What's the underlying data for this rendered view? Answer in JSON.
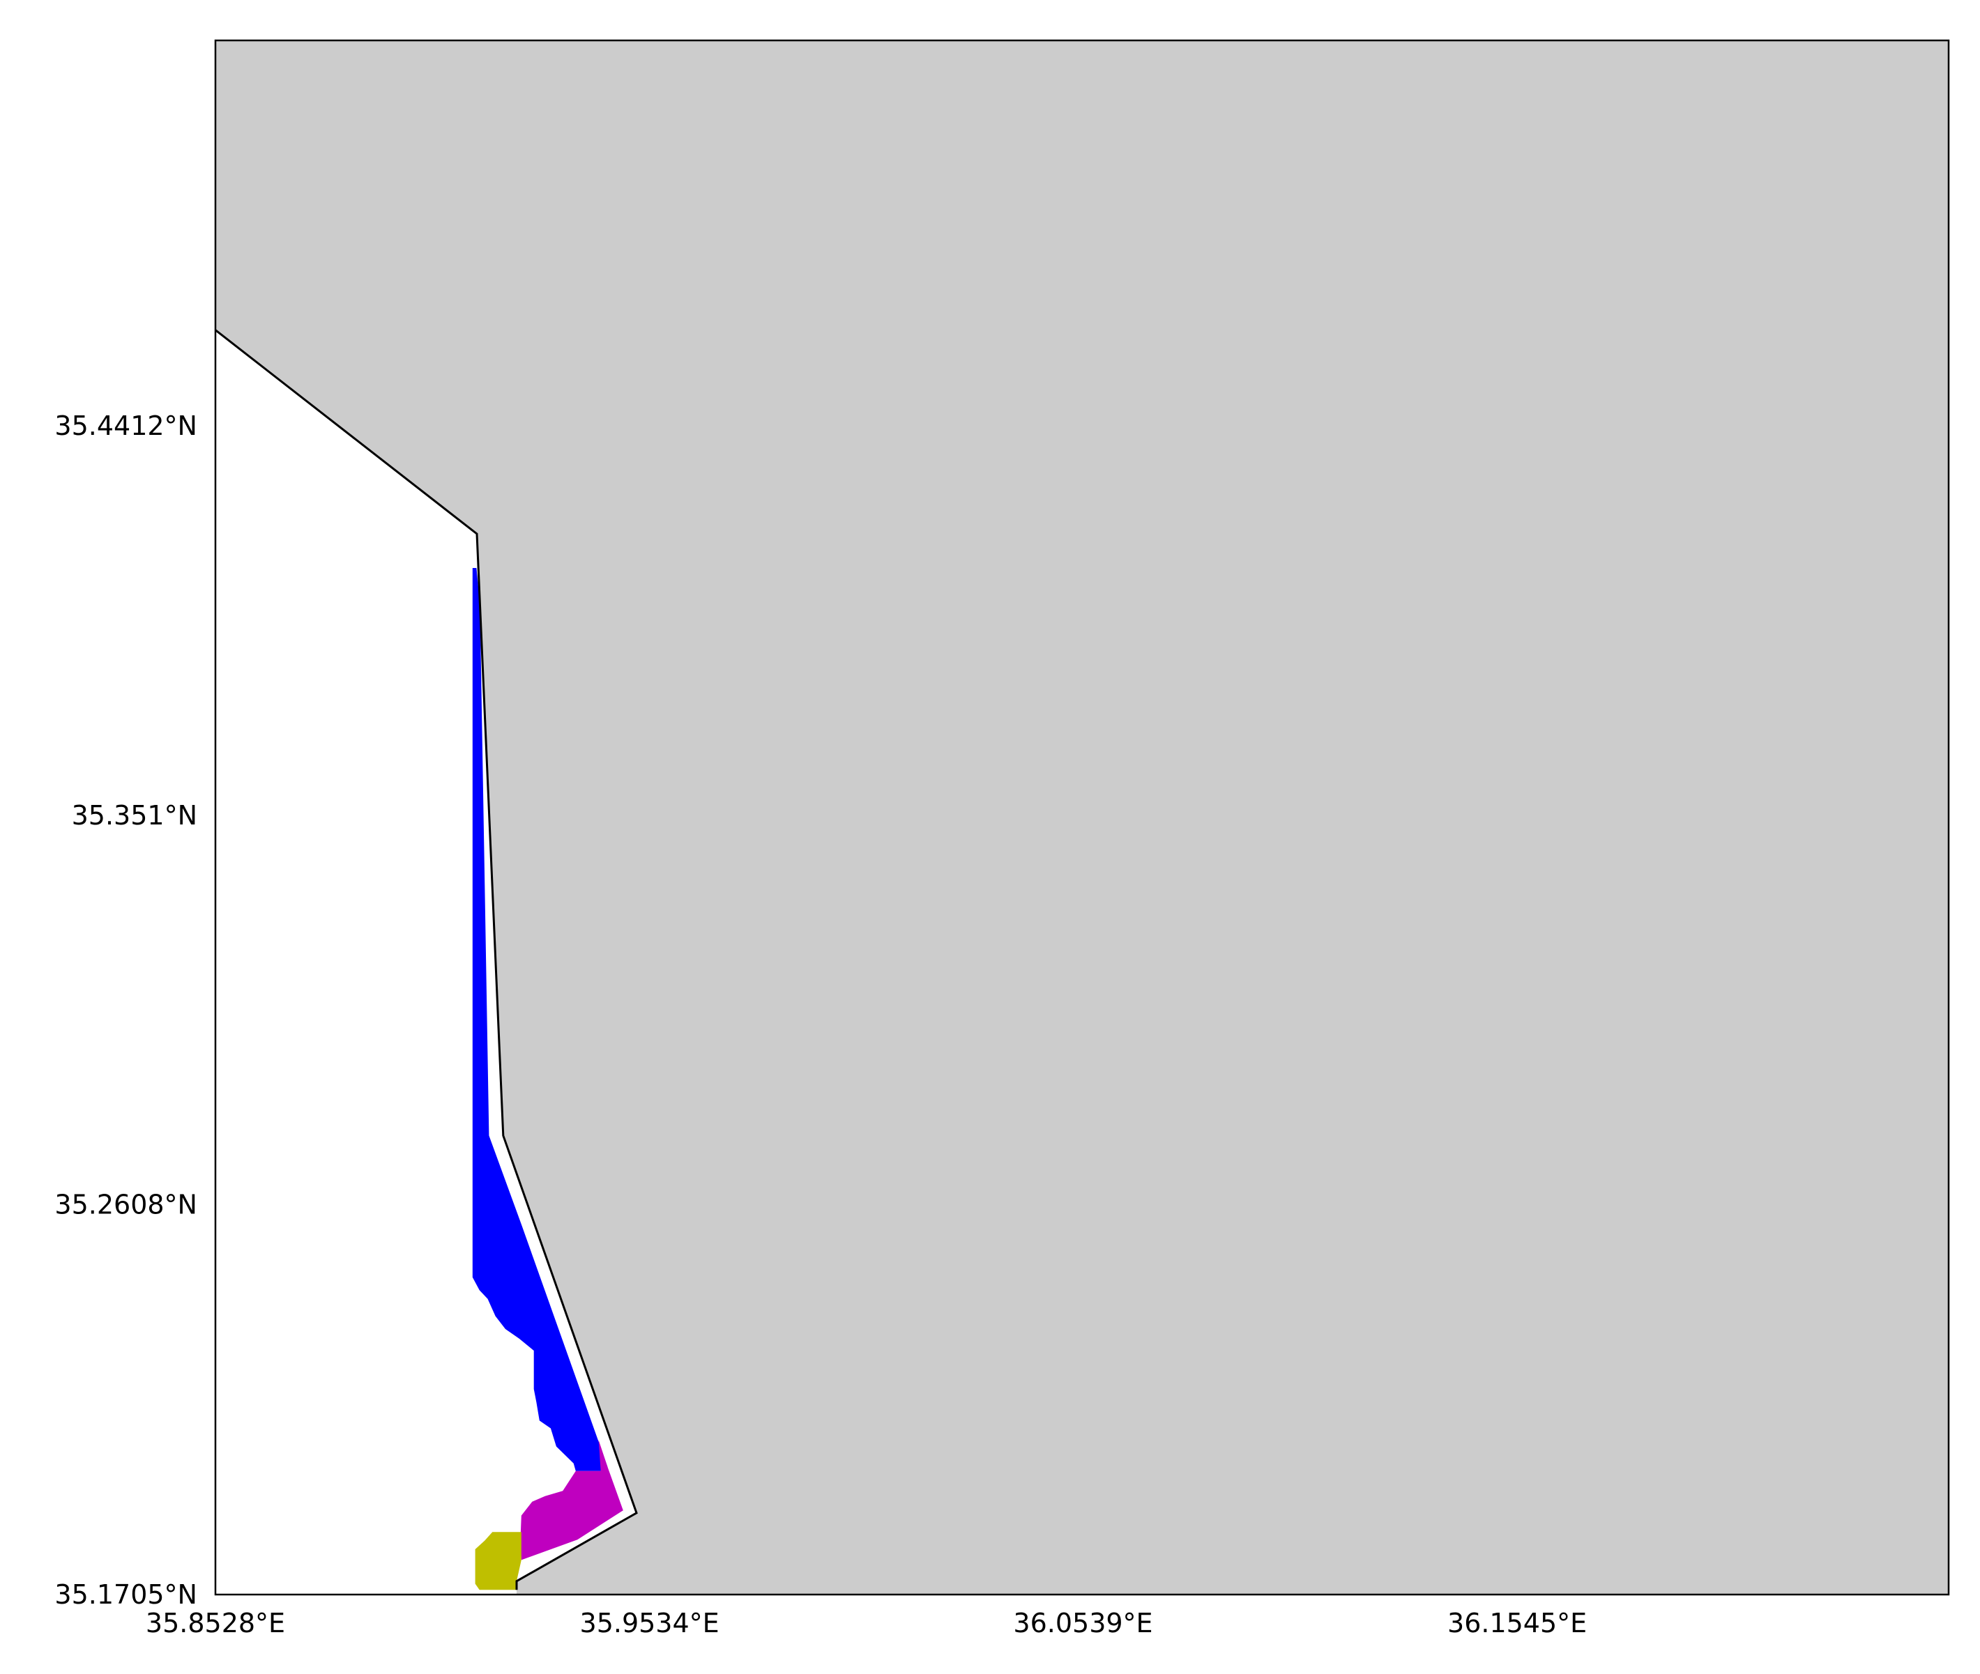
{
  "map": {
    "projection": "PlateCarree",
    "extent": {
      "lon_min": 35.8528,
      "lon_max": 36.2545,
      "lat_min": 35.1705,
      "lat_max": 35.5305
    },
    "colors": {
      "land": "#cccccc",
      "sea": "#ffffff",
      "coastline": "#000000",
      "class_blue": "#0000ff",
      "class_magenta": "#bf00bf",
      "class_olive": "#bfbf00"
    },
    "x_ticks": [
      {
        "value": 35.8528,
        "label": "35.8528°E"
      },
      {
        "value": 35.9534,
        "label": "35.9534°E"
      },
      {
        "value": 36.0539,
        "label": "36.0539°E"
      },
      {
        "value": 36.1545,
        "label": "36.1545°E"
      }
    ],
    "y_ticks": [
      {
        "value": 35.1705,
        "label": "35.1705°N"
      },
      {
        "value": 35.2608,
        "label": "35.2608°N"
      },
      {
        "value": 35.351,
        "label": "35.351°N"
      },
      {
        "value": 35.4412,
        "label": "35.4412°N"
      }
    ],
    "coastline": [
      [
        35.8528,
        35.4634
      ],
      [
        35.9134,
        35.4162
      ],
      [
        35.9195,
        35.2768
      ],
      [
        35.9504,
        35.1894
      ],
      [
        35.9226,
        35.1736
      ],
      [
        35.9226,
        35.1716
      ]
    ],
    "regions": [
      {
        "name": "blue-zone",
        "color_key": "class_blue",
        "polygon": [
          [
            35.9124,
            35.4083
          ],
          [
            35.9133,
            35.4083
          ],
          [
            35.9141,
            35.4
          ],
          [
            35.9162,
            35.2768
          ],
          [
            35.9238,
            35.256
          ],
          [
            35.9437,
            35.2
          ],
          [
            35.9421,
            35.1991
          ],
          [
            35.9363,
            35.1991
          ],
          [
            35.9358,
            35.2009
          ],
          [
            35.9318,
            35.2048
          ],
          [
            35.9305,
            35.209
          ],
          [
            35.9279,
            35.2108
          ],
          [
            35.9272,
            35.215
          ],
          [
            35.9266,
            35.2181
          ],
          [
            35.9266,
            35.227
          ],
          [
            35.9232,
            35.2298
          ],
          [
            35.92,
            35.232
          ],
          [
            35.9177,
            35.235
          ],
          [
            35.9159,
            35.239
          ],
          [
            35.914,
            35.241
          ],
          [
            35.9124,
            35.244
          ]
        ]
      },
      {
        "name": "magenta-zone",
        "color_key": "class_magenta",
        "polygon": [
          [
            35.9416,
            35.2063
          ],
          [
            35.9437,
            35.2
          ],
          [
            35.9473,
            35.19
          ],
          [
            35.9367,
            35.1832
          ],
          [
            35.9237,
            35.1785
          ],
          [
            35.9235,
            35.1833
          ],
          [
            35.9237,
            35.1888
          ],
          [
            35.9262,
            35.192
          ],
          [
            35.9292,
            35.1933
          ],
          [
            35.9333,
            35.1945
          ],
          [
            35.9363,
            35.1991
          ],
          [
            35.9421,
            35.1991
          ]
        ]
      },
      {
        "name": "olive-zone",
        "color_key": "class_olive",
        "polygon": [
          [
            35.9237,
            35.1785
          ],
          [
            35.9226,
            35.1736
          ],
          [
            35.9226,
            35.1716
          ],
          [
            35.914,
            35.1716
          ],
          [
            35.913,
            35.173
          ],
          [
            35.913,
            35.181
          ],
          [
            35.9152,
            35.183
          ],
          [
            35.917,
            35.185
          ],
          [
            35.9237,
            35.185
          ]
        ]
      }
    ]
  }
}
